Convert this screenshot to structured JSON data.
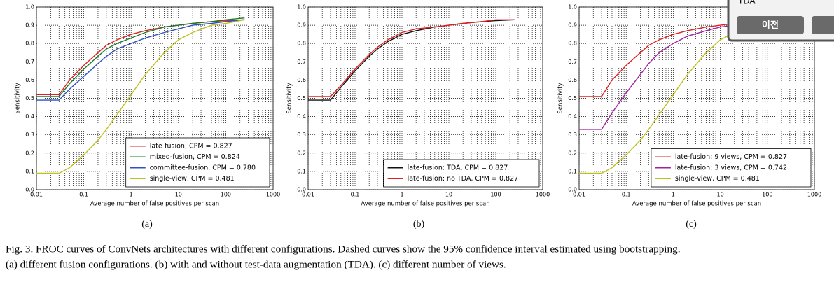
{
  "chart_data": [
    {
      "type": "line",
      "x_label": "Average number of false positives per scan",
      "y_label": "Sensitivity",
      "log_x": true,
      "grid": true,
      "legend": "lower right",
      "xlim": [
        0.01,
        1000
      ],
      "xticks": [
        0.01,
        0.1,
        1,
        10,
        100,
        1000
      ],
      "ylim": [
        0,
        1
      ],
      "yticks": [
        {
          "value": 0,
          "label": "0.0"
        },
        0.1,
        0.2,
        0.3,
        0.4,
        0.5,
        0.6,
        0.7,
        0.8,
        0.9,
        {
          "value": 1,
          "label": "1.0"
        }
      ],
      "x": [
        0.01,
        0.03,
        0.05,
        0.1,
        0.2,
        0.3,
        0.5,
        1,
        2,
        5,
        10,
        20,
        50,
        100,
        250
      ],
      "series": [
        {
          "name": "late-fusion, CPM = 0.827",
          "color": "#e02020",
          "values": [
            0.52,
            0.52,
            0.6,
            0.68,
            0.75,
            0.79,
            0.82,
            0.85,
            0.87,
            0.89,
            0.9,
            0.91,
            0.92,
            0.925,
            0.93
          ]
        },
        {
          "name": "mixed-fusion, CPM = 0.824",
          "color": "#1a7a2a",
          "values": [
            0.51,
            0.51,
            0.58,
            0.66,
            0.73,
            0.77,
            0.8,
            0.83,
            0.86,
            0.89,
            0.9,
            0.91,
            0.92,
            0.93,
            0.94
          ]
        },
        {
          "name": "committee-fusion, CPM = 0.780",
          "color": "#3050c0",
          "values": [
            0.49,
            0.49,
            0.55,
            0.62,
            0.69,
            0.73,
            0.77,
            0.8,
            0.83,
            0.86,
            0.88,
            0.9,
            0.91,
            0.92,
            0.93
          ]
        },
        {
          "name": "single-view, CPM = 0.481",
          "color": "#bfbf20",
          "values": [
            0.09,
            0.09,
            0.12,
            0.19,
            0.27,
            0.33,
            0.41,
            0.52,
            0.63,
            0.75,
            0.82,
            0.86,
            0.9,
            0.91,
            0.93
          ]
        }
      ]
    },
    {
      "type": "line",
      "x_label": "Average number of false positives per scan",
      "y_label": "Sensitivity",
      "log_x": true,
      "grid": true,
      "legend": "lower right",
      "xlim": [
        0.01,
        1000
      ],
      "xticks": [
        0.01,
        0.1,
        1,
        10,
        100,
        1000
      ],
      "ylim": [
        0,
        1
      ],
      "yticks": [
        {
          "value": 0,
          "label": "0.0"
        },
        0.1,
        0.2,
        0.3,
        0.4,
        0.5,
        0.6,
        0.7,
        0.8,
        0.9,
        {
          "value": 1,
          "label": "1.0"
        }
      ],
      "x": [
        0.01,
        0.03,
        0.05,
        0.1,
        0.2,
        0.3,
        0.5,
        1,
        2,
        5,
        10,
        20,
        50,
        100,
        250
      ],
      "series": [
        {
          "name": "late-fusion: TDA, CPM = 0.827",
          "color": "#111111",
          "values": [
            0.49,
            0.49,
            0.56,
            0.65,
            0.73,
            0.77,
            0.81,
            0.85,
            0.87,
            0.89,
            0.9,
            0.91,
            0.92,
            0.925,
            0.93
          ]
        },
        {
          "name": "late-fusion: no TDA, CPM = 0.827",
          "color": "#e02020",
          "values": [
            0.51,
            0.51,
            0.57,
            0.66,
            0.74,
            0.78,
            0.82,
            0.86,
            0.88,
            0.89,
            0.9,
            0.91,
            0.92,
            0.93,
            0.93
          ]
        }
      ]
    },
    {
      "type": "line",
      "x_label": "Average number of false positives per scan",
      "y_label": "Sensitivity",
      "log_x": true,
      "grid": true,
      "legend": "lower right",
      "xlim": [
        0.01,
        1000
      ],
      "xticks": [
        0.01,
        0.1,
        1,
        10,
        100,
        1000
      ],
      "ylim": [
        0,
        1
      ],
      "yticks": [
        {
          "value": 0,
          "label": "0.0"
        },
        0.1,
        0.2,
        0.3,
        0.4,
        0.5,
        0.6,
        0.7,
        0.8,
        0.9,
        {
          "value": 1,
          "label": "1.0"
        }
      ],
      "x": [
        0.01,
        0.03,
        0.05,
        0.1,
        0.2,
        0.3,
        0.5,
        1,
        2,
        5,
        10,
        20,
        50,
        100,
        250
      ],
      "series": [
        {
          "name": "late-fusion: 9 views, CPM = 0.827",
          "color": "#e02020",
          "values": [
            0.51,
            0.51,
            0.6,
            0.68,
            0.75,
            0.79,
            0.82,
            0.85,
            0.87,
            0.89,
            0.9,
            0.91,
            0.92,
            0.925,
            0.93
          ]
        },
        {
          "name": "late-fusion: 3 views, CPM = 0.742",
          "color": "#a020a0",
          "values": [
            0.33,
            0.33,
            0.42,
            0.53,
            0.63,
            0.69,
            0.75,
            0.8,
            0.84,
            0.87,
            0.89,
            0.9,
            0.91,
            0.92,
            0.93
          ]
        },
        {
          "name": "single-view, CPM = 0.481",
          "color": "#bfbf20",
          "values": [
            0.09,
            0.09,
            0.12,
            0.19,
            0.27,
            0.33,
            0.41,
            0.52,
            0.63,
            0.75,
            0.82,
            0.86,
            0.9,
            0.91,
            0.93
          ]
        }
      ]
    }
  ],
  "subcaptions": [
    "(a)",
    "(b)",
    "(c)"
  ],
  "caption": {
    "lines": [
      "Fig. 3.   FROC curves of ConvNets architectures with different configurations. Dashed curves show the 95% confidence interval estimated using bootstrapping.",
      "(a) different fusion configurations. (b) with and without test-data augmentation (TDA). (c) different number of views."
    ]
  },
  "popup": {
    "text": "TDA",
    "button": "이전"
  }
}
